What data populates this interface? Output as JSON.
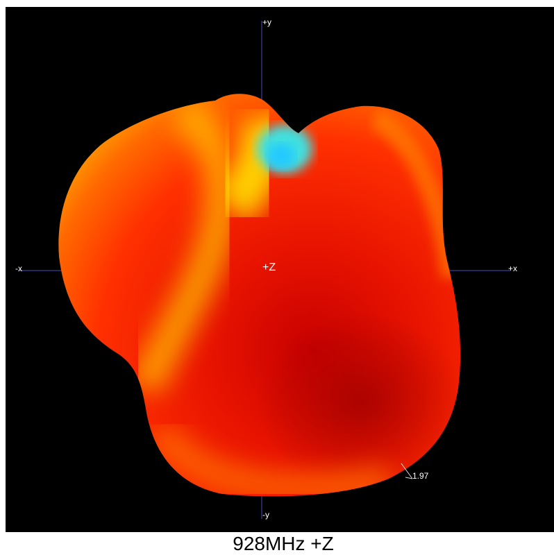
{
  "view": {
    "axis_labels": {
      "plus_y": "+y",
      "minus_y": "-y",
      "minus_x": "-x",
      "plus_x": "+x"
    },
    "center_label": "+Z",
    "max_marker": 1.97
  },
  "caption": "928MHz +Z"
}
